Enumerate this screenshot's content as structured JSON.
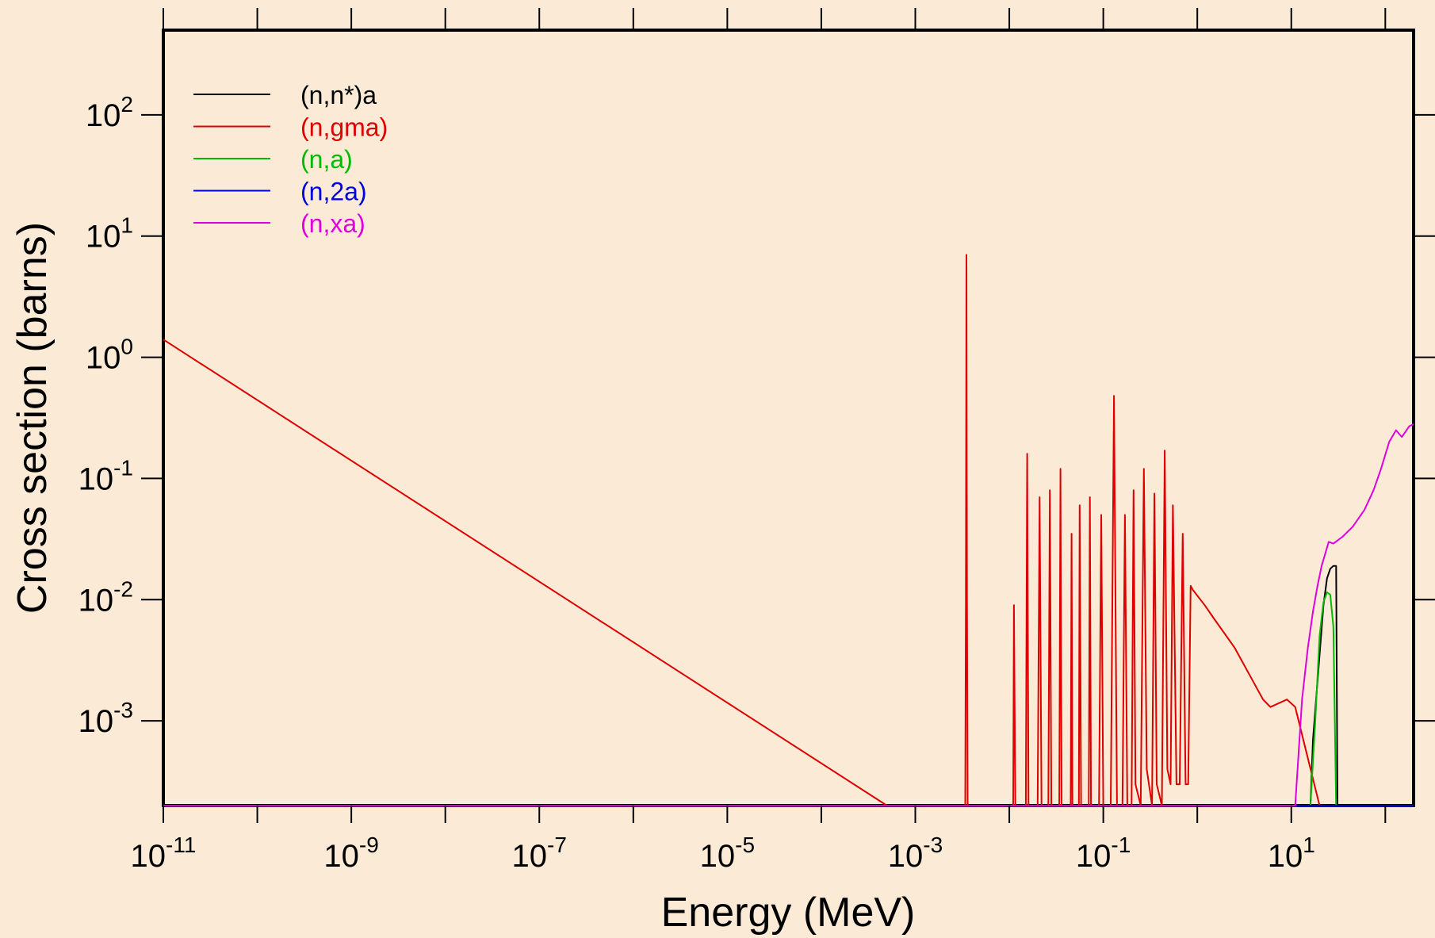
{
  "chart_data": {
    "type": "line",
    "title": "",
    "xlabel": "Energy (MeV)",
    "ylabel": "Cross section (barns)",
    "xscale": "log",
    "yscale": "log",
    "xlim": [
      1e-11,
      200
    ],
    "ylim": [
      0.0002,
      500
    ],
    "grid": false,
    "legend_position": "top-left",
    "colors": {
      "background": "#fbebd6",
      "axes": "#000000"
    },
    "x_ticks": [
      {
        "base": "10",
        "exp": "-11",
        "value": 1e-11
      },
      {
        "base": "10",
        "exp": "-9",
        "value": 1e-09
      },
      {
        "base": "10",
        "exp": "-7",
        "value": 1e-07
      },
      {
        "base": "10",
        "exp": "-5",
        "value": 1e-05
      },
      {
        "base": "10",
        "exp": "-3",
        "value": 0.001
      },
      {
        "base": "10",
        "exp": "-1",
        "value": 0.1
      },
      {
        "base": "10",
        "exp": "1",
        "value": 10
      }
    ],
    "y_ticks": [
      {
        "base": "10",
        "exp": "-3",
        "value": 0.001
      },
      {
        "base": "10",
        "exp": "-2",
        "value": 0.01
      },
      {
        "base": "10",
        "exp": "-1",
        "value": 0.1
      },
      {
        "base": "10",
        "exp": "0",
        "value": 1
      },
      {
        "base": "10",
        "exp": "1",
        "value": 10
      },
      {
        "base": "10",
        "exp": "2",
        "value": 100
      }
    ],
    "series": [
      {
        "name": "(n,n*)a",
        "color": "#000000",
        "points": [
          [
            1e-11,
            0.0002
          ],
          [
            16,
            0.0002
          ],
          [
            17,
            0.0007
          ],
          [
            20,
            0.0035
          ],
          [
            22,
            0.009
          ],
          [
            24,
            0.015
          ],
          [
            26,
            0.018
          ],
          [
            28,
            0.019
          ],
          [
            30,
            0.019
          ],
          [
            31,
            0.0002
          ],
          [
            200,
            0.0002
          ]
        ]
      },
      {
        "name": "(n,gma)",
        "color": "#dd0000",
        "points": [
          [
            1e-11,
            1.4
          ],
          [
            0.0005,
            0.0002
          ],
          [
            0.0034,
            0.0002
          ],
          [
            0.00345,
            0.01
          ],
          [
            0.0035,
            7
          ],
          [
            0.00355,
            0.01
          ],
          [
            0.0036,
            0.0002
          ],
          [
            0.011,
            0.0002
          ],
          [
            0.0112,
            0.009
          ],
          [
            0.0116,
            0.0002
          ],
          [
            0.015,
            0.0002
          ],
          [
            0.0155,
            0.16
          ],
          [
            0.016,
            0.0002
          ],
          [
            0.02,
            0.0002
          ],
          [
            0.021,
            0.07
          ],
          [
            0.022,
            0.0002
          ],
          [
            0.026,
            0.0002
          ],
          [
            0.027,
            0.08
          ],
          [
            0.028,
            0.0002
          ],
          [
            0.034,
            0.0002
          ],
          [
            0.035,
            0.12
          ],
          [
            0.036,
            0.0002
          ],
          [
            0.045,
            0.0002
          ],
          [
            0.046,
            0.035
          ],
          [
            0.047,
            0.0002
          ],
          [
            0.055,
            0.0002
          ],
          [
            0.056,
            0.06
          ],
          [
            0.058,
            0.0002
          ],
          [
            0.07,
            0.0002
          ],
          [
            0.072,
            0.07
          ],
          [
            0.074,
            0.0002
          ],
          [
            0.09,
            0.0002
          ],
          [
            0.095,
            0.05
          ],
          [
            0.1,
            0.0002
          ],
          [
            0.12,
            0.0002
          ],
          [
            0.13,
            0.48
          ],
          [
            0.14,
            0.0002
          ],
          [
            0.16,
            0.0002
          ],
          [
            0.17,
            0.05
          ],
          [
            0.18,
            0.0002
          ],
          [
            0.2,
            0.0002
          ],
          [
            0.21,
            0.08
          ],
          [
            0.22,
            0.0003
          ],
          [
            0.25,
            0.0002
          ],
          [
            0.27,
            0.12
          ],
          [
            0.29,
            0.0004
          ],
          [
            0.33,
            0.0002
          ],
          [
            0.35,
            0.075
          ],
          [
            0.37,
            0.0003
          ],
          [
            0.42,
            0.0002
          ],
          [
            0.45,
            0.17
          ],
          [
            0.48,
            0.0004
          ],
          [
            0.52,
            0.0003
          ],
          [
            0.55,
            0.06
          ],
          [
            0.6,
            0.0003
          ],
          [
            0.65,
            0.0003
          ],
          [
            0.7,
            0.035
          ],
          [
            0.75,
            0.0003
          ],
          [
            0.8,
            0.0003
          ],
          [
            0.85,
            0.013
          ],
          [
            0.9,
            0.012
          ],
          [
            1.2,
            0.009
          ],
          [
            1.5,
            0.007
          ],
          [
            2.5,
            0.004
          ],
          [
            5,
            0.0015
          ],
          [
            6,
            0.0013
          ],
          [
            9,
            0.0015
          ],
          [
            11,
            0.0013
          ],
          [
            20,
            0.0002
          ],
          [
            200,
            0.0002
          ]
        ]
      },
      {
        "name": "(n,a)",
        "color": "#00bb00",
        "points": [
          [
            1e-11,
            0.0002
          ],
          [
            16,
            0.0002
          ],
          [
            18,
            0.001
          ],
          [
            20,
            0.005
          ],
          [
            22,
            0.0095
          ],
          [
            24,
            0.0115
          ],
          [
            26,
            0.011
          ],
          [
            28,
            0.006
          ],
          [
            30,
            0.0002
          ],
          [
            200,
            0.0002
          ]
        ]
      },
      {
        "name": "(n,2a)",
        "color": "#0000dd",
        "points": [
          [
            1e-11,
            0.0002
          ],
          [
            200,
            0.0002
          ]
        ]
      },
      {
        "name": "(n,xa)",
        "color": "#dd00dd",
        "points": [
          [
            1e-11,
            0.0002
          ],
          [
            11,
            0.0002
          ],
          [
            13,
            0.0015
          ],
          [
            15,
            0.004
          ],
          [
            17,
            0.008
          ],
          [
            19,
            0.013
          ],
          [
            21,
            0.019
          ],
          [
            23,
            0.024
          ],
          [
            25,
            0.03
          ],
          [
            28,
            0.029
          ],
          [
            35,
            0.033
          ],
          [
            45,
            0.04
          ],
          [
            60,
            0.055
          ],
          [
            75,
            0.08
          ],
          [
            90,
            0.12
          ],
          [
            110,
            0.2
          ],
          [
            130,
            0.25
          ],
          [
            150,
            0.22
          ],
          [
            180,
            0.27
          ],
          [
            200,
            0.28
          ]
        ]
      }
    ]
  }
}
